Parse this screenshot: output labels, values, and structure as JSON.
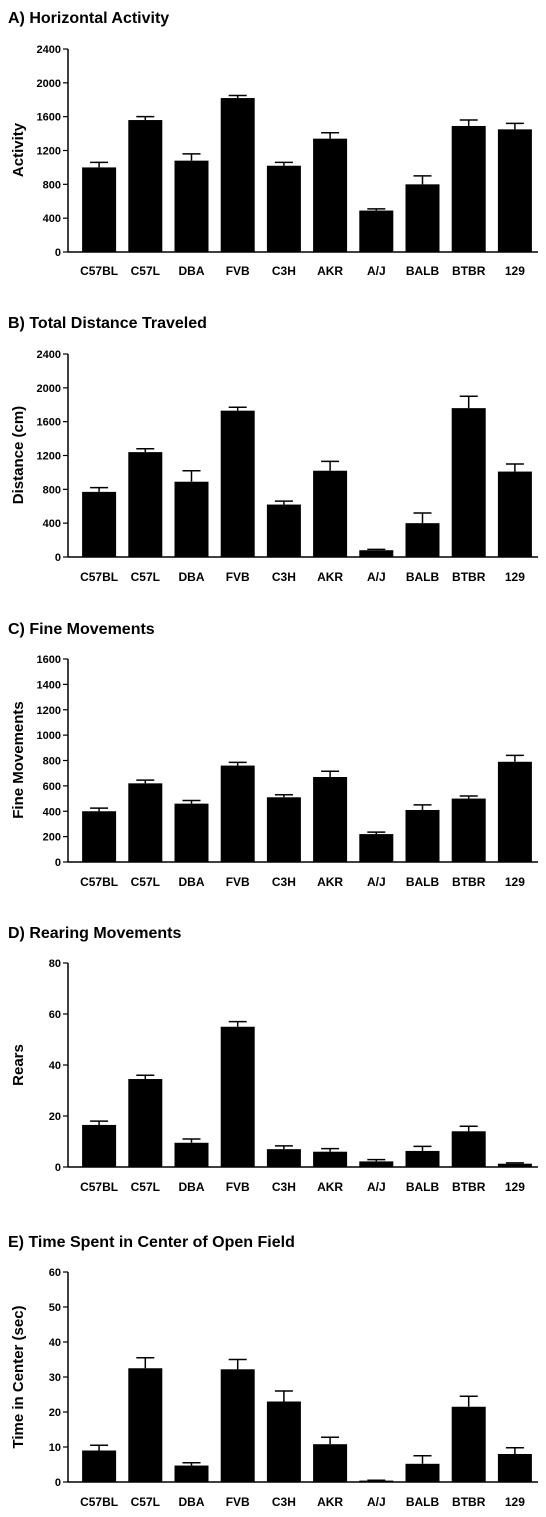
{
  "colors": {
    "bar": "#000000",
    "axis": "#000000",
    "background": "#ffffff"
  },
  "chart_data": [
    {
      "type": "bar",
      "title": "A)  Horizontal Activity",
      "xlabel": "",
      "ylabel": "Activity",
      "ylim": [
        0,
        2400
      ],
      "yticks": [
        0,
        400,
        800,
        1200,
        1600,
        2000,
        2400
      ],
      "categories": [
        "C57BL",
        "C57L",
        "DBA",
        "FVB",
        "C3H",
        "AKR",
        "A/J",
        "BALB",
        "BTBR",
        "129"
      ],
      "values": [
        1000,
        1560,
        1080,
        1820,
        1020,
        1340,
        490,
        800,
        1490,
        1450
      ],
      "errors": [
        60,
        40,
        80,
        30,
        40,
        70,
        20,
        100,
        70,
        70
      ]
    },
    {
      "type": "bar",
      "title": "B)  Total Distance Traveled",
      "xlabel": "",
      "ylabel": "Distance (cm)",
      "ylim": [
        0,
        2400
      ],
      "yticks": [
        0,
        400,
        800,
        1200,
        1600,
        2000,
        2400
      ],
      "categories": [
        "C57BL",
        "C57L",
        "DBA",
        "FVB",
        "C3H",
        "AKR",
        "A/J",
        "BALB",
        "BTBR",
        "129"
      ],
      "values": [
        770,
        1240,
        890,
        1730,
        620,
        1020,
        80,
        400,
        1760,
        1010
      ],
      "errors": [
        50,
        40,
        130,
        40,
        40,
        110,
        10,
        120,
        140,
        90
      ]
    },
    {
      "type": "bar",
      "title": "C)  Fine Movements",
      "xlabel": "",
      "ylabel": "Fine Movements",
      "ylim": [
        0,
        1600
      ],
      "yticks": [
        0,
        200,
        400,
        600,
        800,
        1000,
        1200,
        1400,
        1600
      ],
      "categories": [
        "C57BL",
        "C57L",
        "DBA",
        "FVB",
        "C3H",
        "AKR",
        "A/J",
        "BALB",
        "BTBR",
        "129"
      ],
      "values": [
        400,
        620,
        460,
        760,
        510,
        670,
        220,
        410,
        500,
        790
      ],
      "errors": [
        25,
        25,
        25,
        25,
        20,
        45,
        15,
        40,
        20,
        50
      ]
    },
    {
      "type": "bar",
      "title": "D)  Rearing Movements",
      "xlabel": "",
      "ylabel": "Rears",
      "ylim": [
        0,
        80
      ],
      "yticks": [
        0,
        20,
        40,
        60,
        80
      ],
      "categories": [
        "C57BL",
        "C57L",
        "DBA",
        "FVB",
        "C3H",
        "AKR",
        "A/J",
        "BALB",
        "BTBR",
        "129"
      ],
      "values": [
        16.5,
        34.5,
        9.5,
        55,
        7,
        6,
        2.2,
        6.3,
        14,
        1.3
      ],
      "errors": [
        1.5,
        1.5,
        1.5,
        2,
        1.3,
        1.2,
        0.7,
        1.8,
        2,
        0.3
      ]
    },
    {
      "type": "bar",
      "title": "E)  Time Spent in Center of Open Field",
      "xlabel": "",
      "ylabel": "Time in Center (sec)",
      "ylim": [
        0,
        60
      ],
      "yticks": [
        0,
        10,
        20,
        30,
        40,
        50,
        60
      ],
      "categories": [
        "C57BL",
        "C57L",
        "DBA",
        "FVB",
        "C3H",
        "AKR",
        "A/J",
        "BALB",
        "BTBR",
        "129"
      ],
      "values": [
        9,
        32.5,
        4.7,
        32.2,
        23,
        10.8,
        0.4,
        5.2,
        21.5,
        8
      ],
      "errors": [
        1.5,
        3,
        0.8,
        2.8,
        3,
        2,
        0.1,
        2.3,
        3,
        1.8
      ]
    }
  ]
}
